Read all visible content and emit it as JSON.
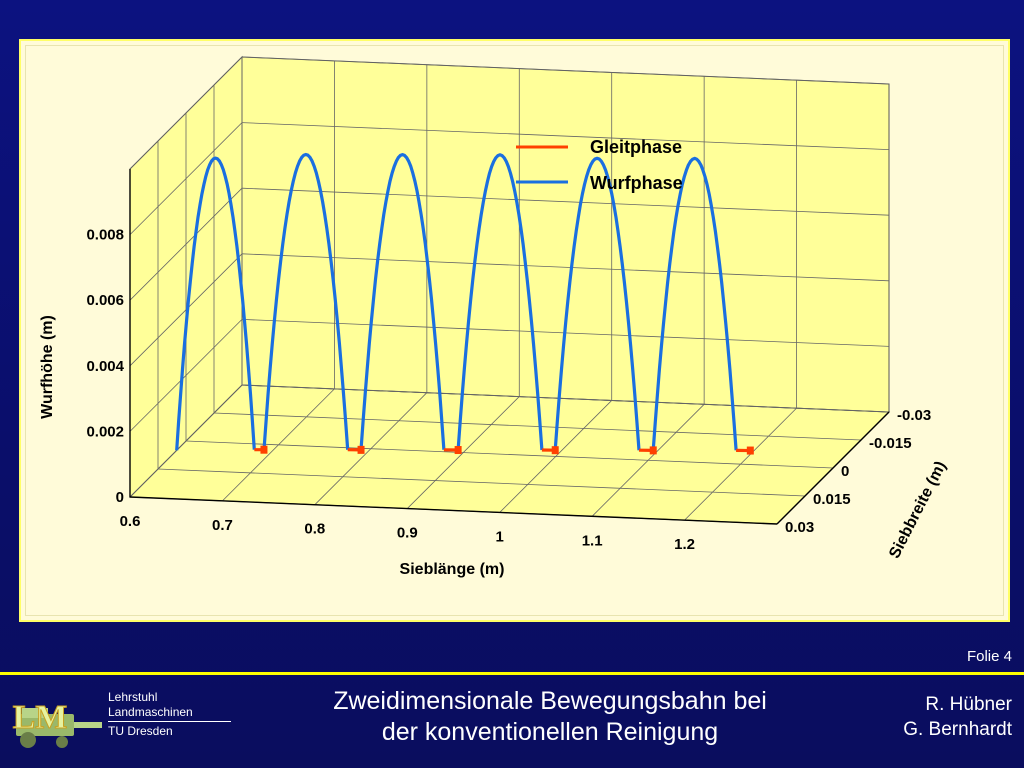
{
  "slide": {
    "number_label": "Folie 4",
    "title_line1": "Zweidimensionale Bewegungsbahn bei",
    "title_line2": "der konventionellen Reinigung",
    "authors": [
      "R. Hübner",
      "G. Bernhardt"
    ],
    "organization": [
      "Lehrstuhl",
      "Landmaschinen",
      "TU Dresden"
    ],
    "logo_letters": "LM",
    "colors": {
      "background": "#0b0f6e",
      "accent": "#ffff00",
      "plot_background": "#ffff99",
      "gleitphase": "#ff4000",
      "wurfphase": "#1a6fe0"
    }
  },
  "chart_data": {
    "type": "line",
    "projection": "3d",
    "xlabel": "Sieblänge (m)",
    "ylabel": "Siebbreite (m)",
    "zlabel": "Wurfhöhe (m)",
    "x_ticks": [
      0.6,
      0.7,
      0.8,
      0.9,
      1,
      1.1,
      1.2
    ],
    "y_ticks": [
      0.03,
      0.015,
      0,
      -0.015,
      -0.03
    ],
    "z_ticks": [
      0,
      0.002,
      0.004,
      0.006,
      0.008
    ],
    "xlim": [
      0.6,
      1.3
    ],
    "ylim": [
      0.03,
      -0.03
    ],
    "zlim": [
      0,
      0.01
    ],
    "grid": true,
    "legend_position": "top-right",
    "series": [
      {
        "name": "Wurfphase",
        "color": "#1a6fe0",
        "arcs": [
          {
            "x_start": 0.6,
            "x_end": 0.68,
            "y_start": 0.005,
            "y_end": 0.003,
            "z_max": 0.0089
          },
          {
            "x_start": 0.69,
            "x_end": 0.777,
            "y_start": 0.0028,
            "y_end": 0.001,
            "z_max": 0.009
          },
          {
            "x_start": 0.791,
            "x_end": 0.877,
            "y_start": 0.0008,
            "y_end": -0.001,
            "z_max": 0.009
          },
          {
            "x_start": 0.892,
            "x_end": 0.979,
            "y_start": -0.0012,
            "y_end": -0.003,
            "z_max": 0.009
          },
          {
            "x_start": 0.993,
            "x_end": 1.08,
            "y_start": -0.0032,
            "y_end": -0.005,
            "z_max": 0.0089
          },
          {
            "x_start": 1.095,
            "x_end": 1.181,
            "y_start": -0.0052,
            "y_end": -0.007,
            "z_max": 0.0089
          }
        ]
      },
      {
        "name": "Gleitphase",
        "color": "#ff4000",
        "segments": [
          {
            "x_start": 0.68,
            "x_end": 0.69,
            "y_start": 0.003,
            "y_end": 0.0028
          },
          {
            "x_start": 0.777,
            "x_end": 0.791,
            "y_start": 0.001,
            "y_end": 0.0008
          },
          {
            "x_start": 0.877,
            "x_end": 0.892,
            "y_start": -0.001,
            "y_end": -0.0012
          },
          {
            "x_start": 0.979,
            "x_end": 0.993,
            "y_start": -0.003,
            "y_end": -0.0032
          },
          {
            "x_start": 1.08,
            "x_end": 1.095,
            "y_start": -0.005,
            "y_end": -0.0052
          },
          {
            "x_start": 1.181,
            "x_end": 1.196,
            "y_start": -0.007,
            "y_end": -0.0072
          }
        ]
      }
    ]
  }
}
